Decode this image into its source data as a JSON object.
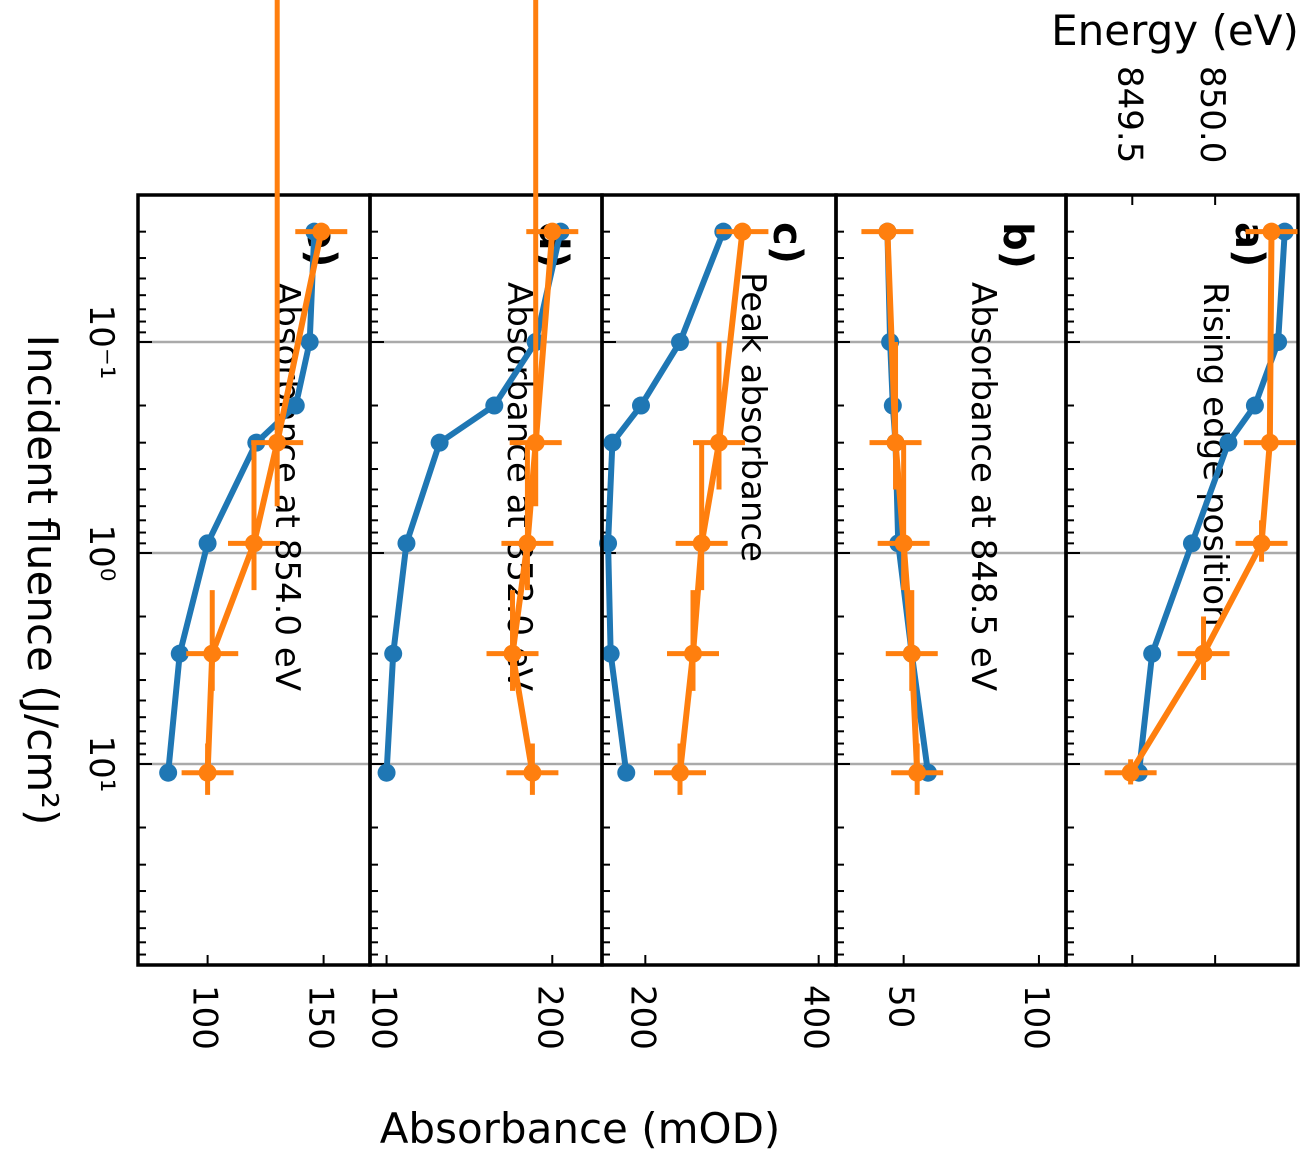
{
  "figure": {
    "ylabel": "Absorbance (mOD)",
    "xlabel": "Incident fluence (J/cm²)",
    "top_axis_label": "Energy (eV)",
    "colors": {
      "series_a": "#1f77b4",
      "series_b": "#ff7f0e",
      "grid": "#aaaaaa",
      "axes": "#000000"
    }
  },
  "chart_data": [
    {
      "type": "line",
      "panel": "a)",
      "title": "Rising edge position",
      "x_scale": "log",
      "xlim": [
        0.03,
        150
      ],
      "xticks": [
        "10⁻¹",
        "10⁰",
        "10¹"
      ],
      "ylabel": "Energy (eV)",
      "ylim": [
        849.1,
        850.5
      ],
      "yticks": [
        "849.5",
        "850.0"
      ],
      "grid": true,
      "series": [
        {
          "values_x": [
            0.03,
            0.1,
            0.2,
            0.3,
            0.9,
            3.0,
            11.0
          ],
          "values_y": [
            850.42,
            850.38,
            850.24,
            850.08,
            849.86,
            849.62,
            849.54
          ]
        },
        {
          "values_x": [
            0.03,
            0.3,
            0.9,
            3.0,
            11.0
          ],
          "values_y": [
            850.34,
            850.33,
            850.28,
            849.93,
            849.49
          ],
          "xerr": [
            0,
            0,
            0.2,
            1.0,
            1.5
          ]
        }
      ]
    },
    {
      "type": "line",
      "panel": "b)",
      "title": "Absorbance at 848.5 eV",
      "x_scale": "log",
      "xlim": [
        0.03,
        150
      ],
      "ylim": [
        25,
        110
      ],
      "yticks": [
        "50",
        "100"
      ],
      "grid": true,
      "series": [
        {
          "values_x": [
            0.03,
            0.1,
            0.2,
            0.3,
            0.9,
            3.0,
            11.0
          ],
          "values_y": [
            44,
            45,
            46,
            47,
            48,
            53,
            59
          ]
        },
        {
          "values_x": [
            0.03,
            0.3,
            0.9,
            3.0,
            11.0
          ],
          "values_y": [
            44,
            47,
            50,
            53,
            55
          ],
          "xerr": [
            0,
            0.2,
            0.6,
            1.5,
            3.0
          ]
        }
      ]
    },
    {
      "type": "line",
      "panel": "c)",
      "title": "Peak absorbance",
      "x_scale": "log",
      "xlim": [
        0.03,
        150
      ],
      "ylim": [
        150,
        420
      ],
      "yticks": [
        "200",
        "400"
      ],
      "grid": true,
      "series": [
        {
          "values_x": [
            0.03,
            0.1,
            0.2,
            0.3,
            0.9,
            3.0,
            11.0
          ],
          "values_y": [
            290,
            240,
            195,
            162,
            157,
            160,
            178
          ]
        },
        {
          "values_x": [
            0.03,
            0.3,
            0.9,
            3.0,
            11.0
          ],
          "values_y": [
            312,
            285,
            265,
            255,
            240
          ],
          "xerr": [
            0,
            0.2,
            0.6,
            1.5,
            3.0
          ]
        }
      ]
    },
    {
      "type": "line",
      "panel": "d)",
      "title": "Absorbance at 852.0 eV",
      "x_scale": "log",
      "xlim": [
        0.03,
        150
      ],
      "ylim": [
        90,
        230
      ],
      "yticks": [
        "100",
        "200"
      ],
      "grid": true,
      "series": [
        {
          "values_x": [
            0.03,
            0.1,
            0.2,
            0.3,
            0.9,
            3.0,
            11.0
          ],
          "values_y": [
            205,
            190,
            165,
            132,
            112,
            104,
            100
          ]
        },
        {
          "values_x": [
            0.03,
            0.3,
            0.9,
            3.0,
            11.0
          ],
          "values_y": [
            200,
            190,
            185,
            176,
            188
          ],
          "xerr": [
            0,
            0.3,
            0.6,
            1.5,
            3.0
          ]
        }
      ]
    },
    {
      "type": "line",
      "panel": "e)",
      "title": "Absorbance at 854.0 eV",
      "x_scale": "log",
      "xlim": [
        0.03,
        150
      ],
      "ylim": [
        70,
        170
      ],
      "yticks": [
        "100",
        "150"
      ],
      "grid": true,
      "series": [
        {
          "values_x": [
            0.03,
            0.1,
            0.2,
            0.3,
            0.9,
            3.0,
            11.0
          ],
          "values_y": [
            146,
            144,
            138,
            121,
            100,
            88,
            83
          ]
        },
        {
          "values_x": [
            0.03,
            0.3,
            0.9,
            3.0,
            11.0
          ],
          "values_y": [
            149,
            130,
            120,
            102,
            100
          ],
          "xerr": [
            0,
            0.3,
            0.6,
            1.5,
            3.0
          ]
        }
      ]
    }
  ]
}
